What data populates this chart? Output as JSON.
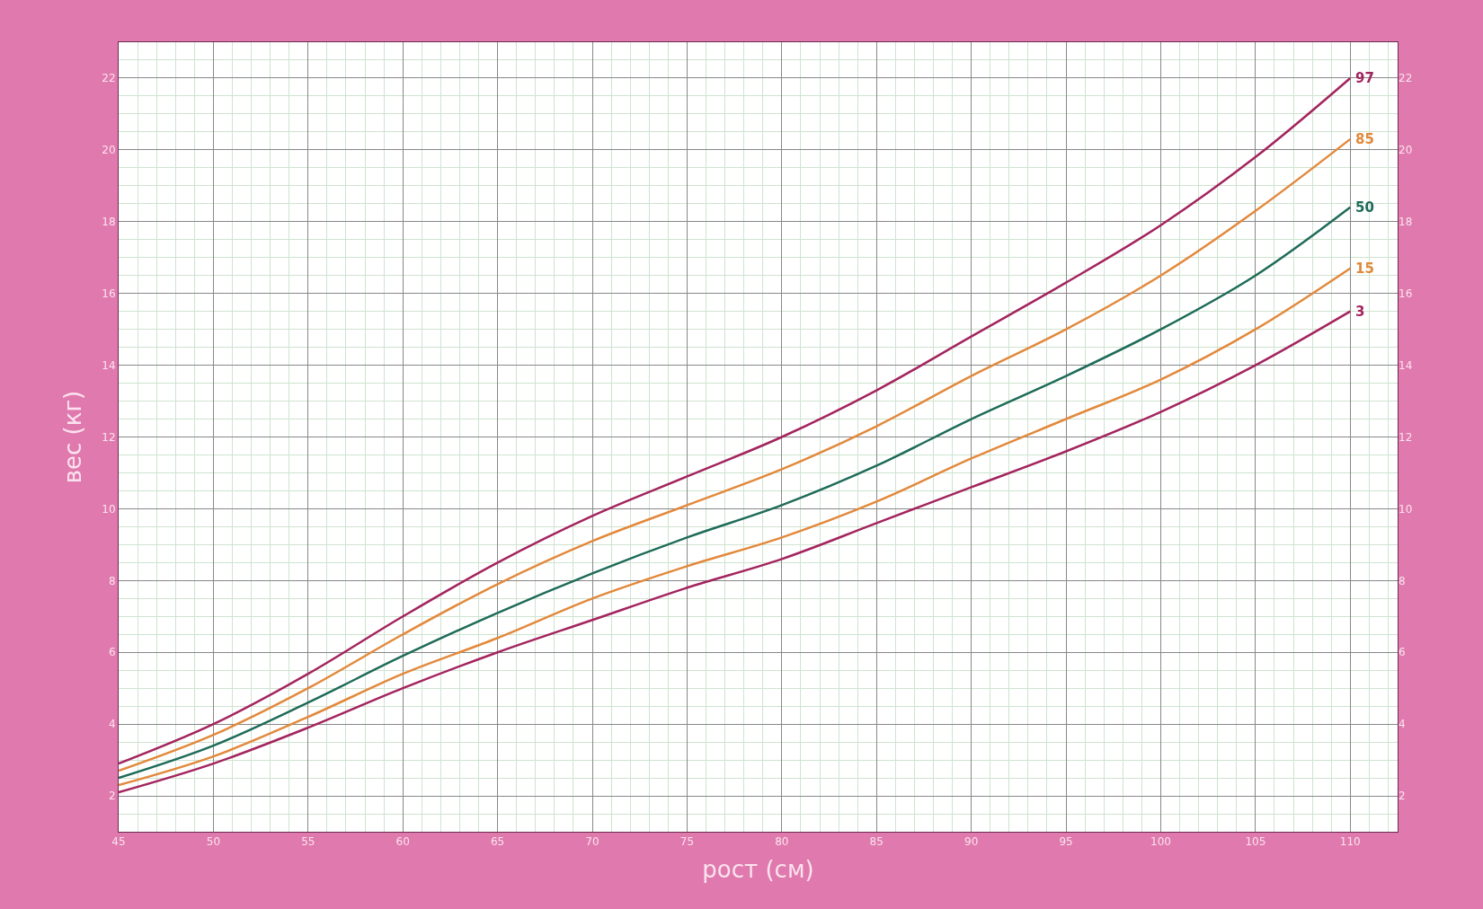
{
  "chart_data": {
    "type": "line",
    "xlabel": "рост (см)",
    "ylabel": "вес (кг)",
    "x": [
      45,
      50,
      55,
      60,
      65,
      70,
      75,
      80,
      85,
      90,
      95,
      100,
      105,
      110
    ],
    "xlim": [
      45,
      112.5
    ],
    "xticks": [
      45,
      50,
      55,
      60,
      65,
      70,
      75,
      80,
      85,
      90,
      95,
      100,
      105,
      110
    ],
    "ylim": [
      1,
      23
    ],
    "yticks": [
      2,
      4,
      6,
      8,
      10,
      12,
      14,
      16,
      18,
      20,
      22
    ],
    "y2lim": [
      1,
      23
    ],
    "y2ticks": [
      2,
      4,
      6,
      8,
      10,
      12,
      14,
      16,
      18,
      20,
      22
    ],
    "grid": true,
    "legend": false,
    "marker": "none",
    "line_style": "solid",
    "series": [
      {
        "name": "97",
        "color": "#a3245e",
        "values": [
          2.9,
          4.0,
          5.4,
          7.0,
          8.5,
          9.8,
          10.9,
          12.0,
          13.3,
          14.8,
          16.3,
          17.9,
          19.8,
          22.0
        ]
      },
      {
        "name": "85",
        "color": "#e2893c",
        "values": [
          2.7,
          3.7,
          5.0,
          6.5,
          7.9,
          9.1,
          10.1,
          11.1,
          12.3,
          13.7,
          15.0,
          16.5,
          18.3,
          20.3
        ]
      },
      {
        "name": "50",
        "color": "#1e6b58",
        "values": [
          2.5,
          3.4,
          4.6,
          5.9,
          7.1,
          8.2,
          9.2,
          10.1,
          11.2,
          12.5,
          13.7,
          15.0,
          16.5,
          18.4
        ]
      },
      {
        "name": "15",
        "color": "#e2893c",
        "values": [
          2.3,
          3.1,
          4.2,
          5.4,
          6.4,
          7.5,
          8.4,
          9.2,
          10.2,
          11.4,
          12.5,
          13.6,
          15.0,
          16.7
        ]
      },
      {
        "name": "3",
        "color": "#a3245e",
        "values": [
          2.1,
          2.9,
          3.9,
          5.0,
          6.0,
          6.9,
          7.8,
          8.6,
          9.6,
          10.6,
          11.6,
          12.7,
          14.0,
          15.5
        ]
      }
    ]
  }
}
